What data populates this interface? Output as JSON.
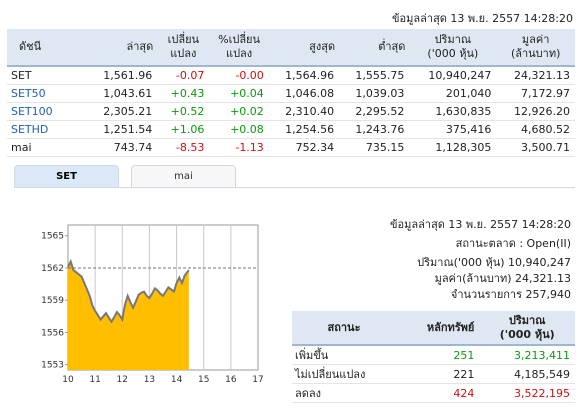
{
  "header": {
    "last_update": "ข้อมูลล่าสุด 13 พ.ย. 2557 14:28:20"
  },
  "index_table": {
    "columns": [
      "ดัชนี",
      "ล่าสุด",
      "เปลี่ยน\nแปลง",
      "%เปลี่ยน\nแปลง",
      "สูงสุด",
      "ต่ำสุด",
      "ปริมาณ\n('000 หุ้น)",
      "มูลค่า\n(ล้านบาท)"
    ],
    "rows": [
      {
        "name": "SET",
        "last": "1,561.96",
        "change": "-0.07",
        "pct": "-0.00",
        "high": "1,564.96",
        "low": "1,555.75",
        "volume": "10,940,247",
        "value": "24,321.13"
      },
      {
        "name": "SET50",
        "last": "1,043.61",
        "change": "+0.43",
        "pct": "+0.04",
        "high": "1,046.08",
        "low": "1,039.03",
        "volume": "201,040",
        "value": "7,172.97"
      },
      {
        "name": "SET100",
        "last": "2,305.21",
        "change": "+0.52",
        "pct": "+0.02",
        "high": "2,310.40",
        "low": "2,295.52",
        "volume": "1,630,835",
        "value": "12,926.20"
      },
      {
        "name": "SETHD",
        "last": "1,251.54",
        "change": "+1.06",
        "pct": "+0.08",
        "high": "1,254.56",
        "low": "1,243.76",
        "volume": "375,416",
        "value": "4,680.52"
      },
      {
        "name": "mai",
        "last": "743.74",
        "change": "-8.53",
        "pct": "-1.13",
        "high": "752.34",
        "low": "735.15",
        "volume": "1,128,305",
        "value": "3,500.71"
      }
    ]
  },
  "tabs": [
    {
      "label": "SET",
      "active": true
    },
    {
      "label": "mai",
      "active": false
    }
  ],
  "market_info": {
    "last_update": "ข้อมูลล่าสุด 13 พ.ย. 2557 14:28:20",
    "status": "สถานะตลาด : Open(II)",
    "volume": "ปริมาณ('000 หุ้น) 10,940,247",
    "value": "มูลค่า(ล้านบาท) 24,321.13",
    "trades": "จำนวนรายการ 257,940"
  },
  "stats_table": {
    "columns": [
      "สถานะ",
      "หลักทรัพย์",
      "ปริมาณ\n('000 หุ้น)"
    ],
    "rows": [
      {
        "status": "เพิ่มขึ้น",
        "count": "251",
        "volume": "3,213,411",
        "color": "#0a9a0a"
      },
      {
        "status": "ไม่เปลี่ยนแปลง",
        "count": "221",
        "volume": "4,185,549",
        "color": "#1f5fb5"
      },
      {
        "status": "ลดลง",
        "count": "424",
        "volume": "3,522,195",
        "color": "#d01010"
      }
    ]
  },
  "chart_data": {
    "type": "area",
    "x_ticks": [
      "10",
      "11",
      "12",
      "13",
      "14",
      "15",
      "16",
      "17"
    ],
    "y_ticks": [
      "1565",
      "1562",
      "1559",
      "1556",
      "1553"
    ],
    "ylim": [
      1552.5,
      1566
    ],
    "reference_line": 1562,
    "fill_color": "#ffbe00",
    "line_color": "#777777",
    "x": [
      10.0,
      10.1,
      10.2,
      10.35,
      10.5,
      10.6,
      10.7,
      10.8,
      10.9,
      11.0,
      11.1,
      11.2,
      11.3,
      11.4,
      11.5,
      11.6,
      11.7,
      11.8,
      11.9,
      12.0,
      12.05,
      12.1,
      12.2,
      12.3,
      12.4,
      12.5,
      12.6,
      12.7,
      12.8,
      12.9,
      13.0,
      13.1,
      13.2,
      13.3,
      13.4,
      13.5,
      13.6,
      13.7,
      13.8,
      13.9,
      14.0,
      14.1,
      14.2,
      14.3,
      14.45
    ],
    "y": [
      1562.1,
      1562.6,
      1561.8,
      1561.5,
      1561.2,
      1560.6,
      1560.0,
      1559.4,
      1558.5,
      1558.0,
      1557.6,
      1557.2,
      1557.5,
      1557.8,
      1557.4,
      1557.0,
      1557.4,
      1557.9,
      1557.6,
      1557.2,
      1557.9,
      1558.6,
      1559.4,
      1558.8,
      1558.3,
      1558.9,
      1559.5,
      1559.7,
      1559.8,
      1559.4,
      1559.2,
      1559.6,
      1560.1,
      1559.9,
      1559.6,
      1559.4,
      1559.8,
      1560.2,
      1560.0,
      1559.8,
      1560.6,
      1561.1,
      1560.6,
      1561.3,
      1561.8
    ]
  }
}
